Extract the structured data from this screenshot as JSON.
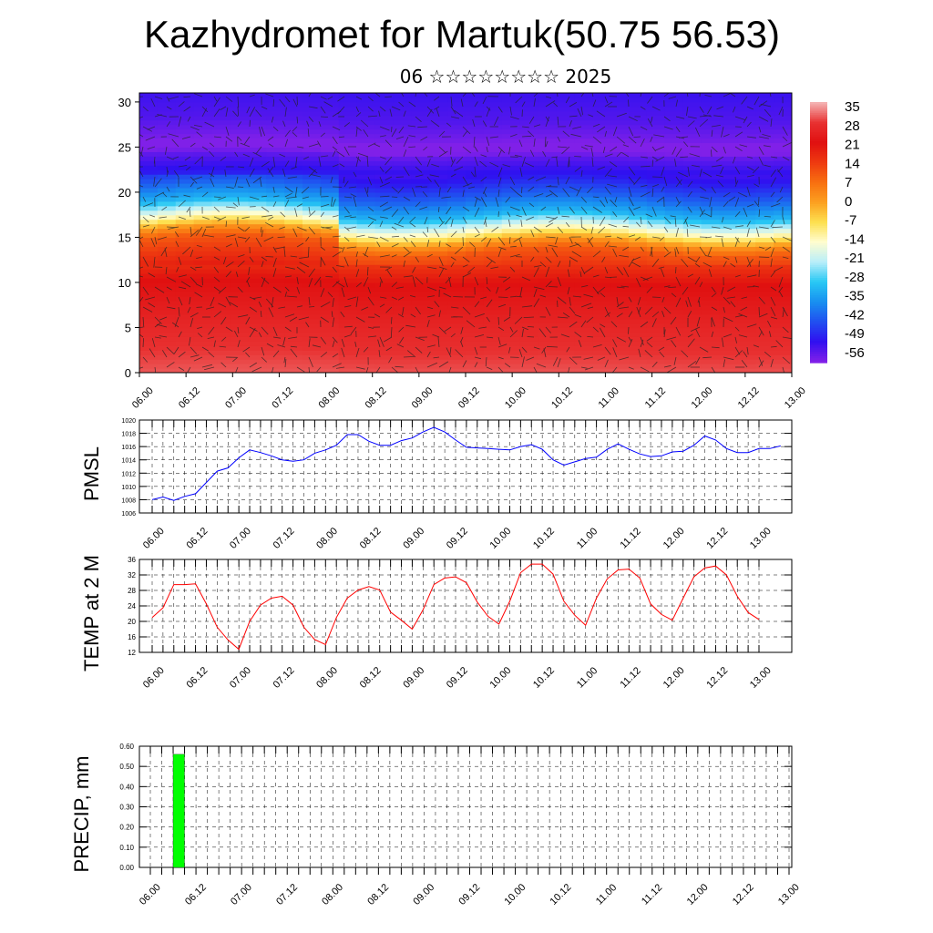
{
  "header": {
    "title": "Kazhydromet for Martuk(50.75 56.53)",
    "subtitle": "06 ☆☆☆☆☆☆☆☆ 2025"
  },
  "time_ticks": [
    "06.00",
    "06.12",
    "07.00",
    "07.12",
    "08.00",
    "08.12",
    "09.00",
    "09.12",
    "10.00",
    "10.12",
    "11.00",
    "11.12",
    "12.00",
    "12.12",
    "13.00"
  ],
  "chart_data": [
    {
      "type": "heatmap",
      "name": "cross-section",
      "x_ticks": [
        "06.00",
        "06.12",
        "07.00",
        "07.12",
        "08.00",
        "08.12",
        "09.00",
        "09.12",
        "10.00",
        "10.12",
        "11.00",
        "11.12",
        "12.00",
        "12.12",
        "13.00"
      ],
      "y_ticks": [
        0,
        5,
        10,
        15,
        20,
        25,
        30
      ],
      "ylim": [
        0,
        31
      ],
      "colorbar": {
        "labels": [
          "35",
          "28",
          "21",
          "14",
          "7",
          "0",
          "-7",
          "-14",
          "-21",
          "-28",
          "-35",
          "-42",
          "-49",
          "-56"
        ],
        "colors": [
          "#f4b0b0",
          "#e83030",
          "#e01010",
          "#ee3a10",
          "#f87010",
          "#fca020",
          "#fde050",
          "#fffdd0",
          "#b8eefa",
          "#28c8f4",
          "#1890f0",
          "#2050f0",
          "#3010f0",
          "#8020e8"
        ]
      },
      "temp_profile": {
        "levels": [
          0,
          5,
          10,
          14,
          15,
          16,
          18,
          20,
          22,
          24,
          25,
          26,
          28,
          31
        ],
        "values": [
          30,
          26,
          21,
          10,
          2,
          -10,
          -30,
          -40,
          -48,
          -53,
          -58,
          -55,
          -52,
          -50
        ]
      }
    },
    {
      "type": "line",
      "name": "pmsl",
      "ylabel": "PMSL",
      "ylim": [
        1006,
        1020
      ],
      "y_ticks": [
        1006,
        1008,
        1010,
        1012,
        1014,
        1016,
        1018,
        1020
      ],
      "x_ticks": [
        "06.00",
        "06.12",
        "07.00",
        "07.12",
        "08.00",
        "08.12",
        "09.00",
        "09.12",
        "10.00",
        "10.12",
        "11.00",
        "11.12",
        "12.00",
        "12.12",
        "13.00"
      ],
      "color": "#0000ff",
      "series": [
        {
          "x_step_hours": 3,
          "values": [
            1008,
            1008.4,
            1007.9,
            1008.5,
            1008.9,
            1010.6,
            1012.3,
            1012.8,
            1014.3,
            1015.5,
            1015.1,
            1014.6,
            1014,
            1013.8,
            1014,
            1015,
            1015.5,
            1016.2,
            1017.8,
            1017.8,
            1016.8,
            1016.2,
            1016.2,
            1016.9,
            1017.3,
            1018.2,
            1018.9,
            1018.2,
            1017,
            1015.9,
            1015.8,
            1015.7,
            1015.6,
            1015.5,
            1016,
            1016.3,
            1015.6,
            1014,
            1013.2,
            1013.7,
            1014.2,
            1014.4,
            1015.6,
            1016.4,
            1015.6,
            1014.9,
            1014.5,
            1014.6,
            1015.2,
            1015.3,
            1016.2,
            1017.6,
            1017,
            1015.7,
            1015.1,
            1015.1,
            1015.7,
            1015.7,
            1016.1
          ]
        }
      ]
    },
    {
      "type": "line",
      "name": "temp2m",
      "ylabel": "TEMP at 2 M",
      "ylim": [
        12,
        36
      ],
      "y_ticks": [
        12,
        16,
        20,
        24,
        28,
        32,
        36
      ],
      "x_ticks": [
        "06.00",
        "06.12",
        "07.00",
        "07.12",
        "08.00",
        "08.12",
        "09.00",
        "09.12",
        "10.00",
        "10.12",
        "11.00",
        "11.12",
        "12.00",
        "12.12",
        "13.00"
      ],
      "color": "#ff0000",
      "series": [
        {
          "x_step_hours": 3,
          "values": [
            21,
            23.5,
            29.5,
            29.5,
            29.7,
            24.5,
            18.5,
            15.2,
            12.8,
            20,
            24.2,
            26,
            26.5,
            24.2,
            18.5,
            15.3,
            14,
            21,
            26,
            28.1,
            29,
            28.1,
            22.4,
            20.3,
            18,
            23,
            29.5,
            31.2,
            31.5,
            30,
            25,
            21.3,
            19.3,
            25.2,
            32.6,
            34.8,
            34.8,
            32.2,
            25.2,
            21.6,
            19,
            26,
            31,
            33.3,
            33.5,
            31.2,
            24.5,
            21.8,
            20.3,
            26,
            31.5,
            33.8,
            34.3,
            32,
            26.5,
            22.3,
            20.5
          ]
        }
      ]
    },
    {
      "type": "bar",
      "name": "precip",
      "ylabel": "PRECIP, mm",
      "ylim": [
        0,
        0.6
      ],
      "y_ticks": [
        "0.00",
        "0.10",
        "0.20",
        "0.30",
        "0.40",
        "0.50",
        "0.60"
      ],
      "x_ticks": [
        "06.00",
        "06.12",
        "07.00",
        "07.12",
        "08.00",
        "08.12",
        "09.00",
        "09.12",
        "10.00",
        "10.12",
        "11.00",
        "11.12",
        "12.00",
        "12.12",
        "13.00"
      ],
      "color": "#00ff00",
      "bars": [
        {
          "start_hour": 6,
          "end_hour": 9,
          "value": 0.56
        }
      ]
    }
  ]
}
